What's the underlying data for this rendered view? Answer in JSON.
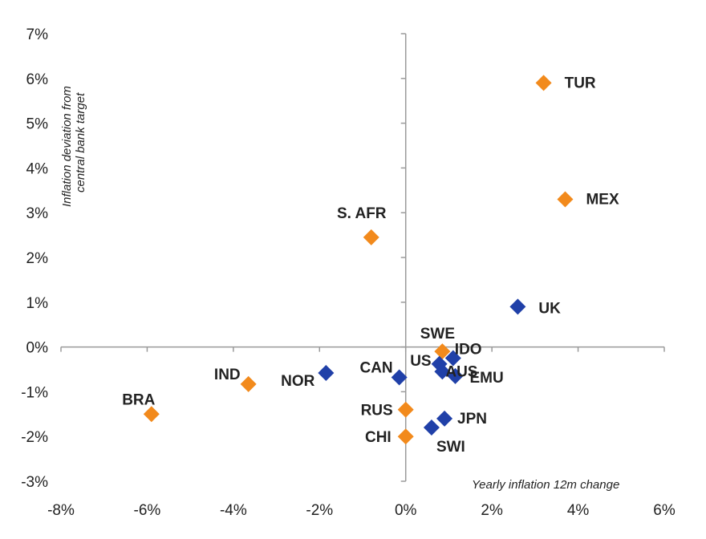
{
  "chart_data": {
    "type": "scatter",
    "xlabel": "Yearly inflation 12m change",
    "ylabel_lines": [
      "Inflation deviation from",
      "central bank target"
    ],
    "xlim": [
      -0.08,
      0.06
    ],
    "ylim": [
      -0.03,
      0.07
    ],
    "x_ticks": [
      -0.08,
      -0.06,
      -0.04,
      -0.02,
      0,
      0.02,
      0.04,
      0.06
    ],
    "x_tick_labels": [
      "-8%",
      "-6%",
      "-4%",
      "-2%",
      "0%",
      "2%",
      "4%",
      "6%"
    ],
    "y_ticks": [
      -0.03,
      -0.02,
      -0.01,
      0,
      0.01,
      0.02,
      0.03,
      0.04,
      0.05,
      0.06,
      0.07
    ],
    "y_tick_labels": [
      "-3%",
      "-2%",
      "-1%",
      "0%",
      "1%",
      "2%",
      "3%",
      "4%",
      "5%",
      "6%",
      "7%"
    ],
    "grid": false,
    "colors": {
      "orange": "#f28a1c",
      "blue": "#2040a8"
    },
    "points": [
      {
        "label": "TUR",
        "x": 0.032,
        "y": 0.059,
        "color": "orange"
      },
      {
        "label": "MEX",
        "x": 0.037,
        "y": 0.033,
        "color": "orange"
      },
      {
        "label": "S. AFR",
        "x": -0.008,
        "y": 0.0245,
        "color": "orange"
      },
      {
        "label": "UK",
        "x": 0.026,
        "y": 0.009,
        "color": "blue"
      },
      {
        "label": "SWE",
        "x": 0.0085,
        "y": -0.001,
        "color": "orange"
      },
      {
        "label": "IDO",
        "x": 0.011,
        "y": -0.0025,
        "color": "blue"
      },
      {
        "label": "US",
        "x": 0.0078,
        "y": -0.0038,
        "color": "blue"
      },
      {
        "label": "CAN",
        "x": -0.0015,
        "y": -0.0068,
        "color": "blue"
      },
      {
        "label": "AUS",
        "x": 0.0085,
        "y": -0.0055,
        "color": "blue"
      },
      {
        "label": "EMU",
        "x": 0.0115,
        "y": -0.0065,
        "color": "blue"
      },
      {
        "label": "NOR",
        "x": -0.0185,
        "y": -0.0058,
        "color": "blue"
      },
      {
        "label": "IND",
        "x": -0.0365,
        "y": -0.0083,
        "color": "orange"
      },
      {
        "label": "BRA",
        "x": -0.059,
        "y": -0.015,
        "color": "orange"
      },
      {
        "label": "RUS",
        "x": 0.0,
        "y": -0.014,
        "color": "orange"
      },
      {
        "label": "JPN",
        "x": 0.009,
        "y": -0.016,
        "color": "blue"
      },
      {
        "label": "SWI",
        "x": 0.006,
        "y": -0.018,
        "color": "blue"
      },
      {
        "label": "CHI",
        "x": 0.0,
        "y": -0.02,
        "color": "orange"
      }
    ]
  }
}
